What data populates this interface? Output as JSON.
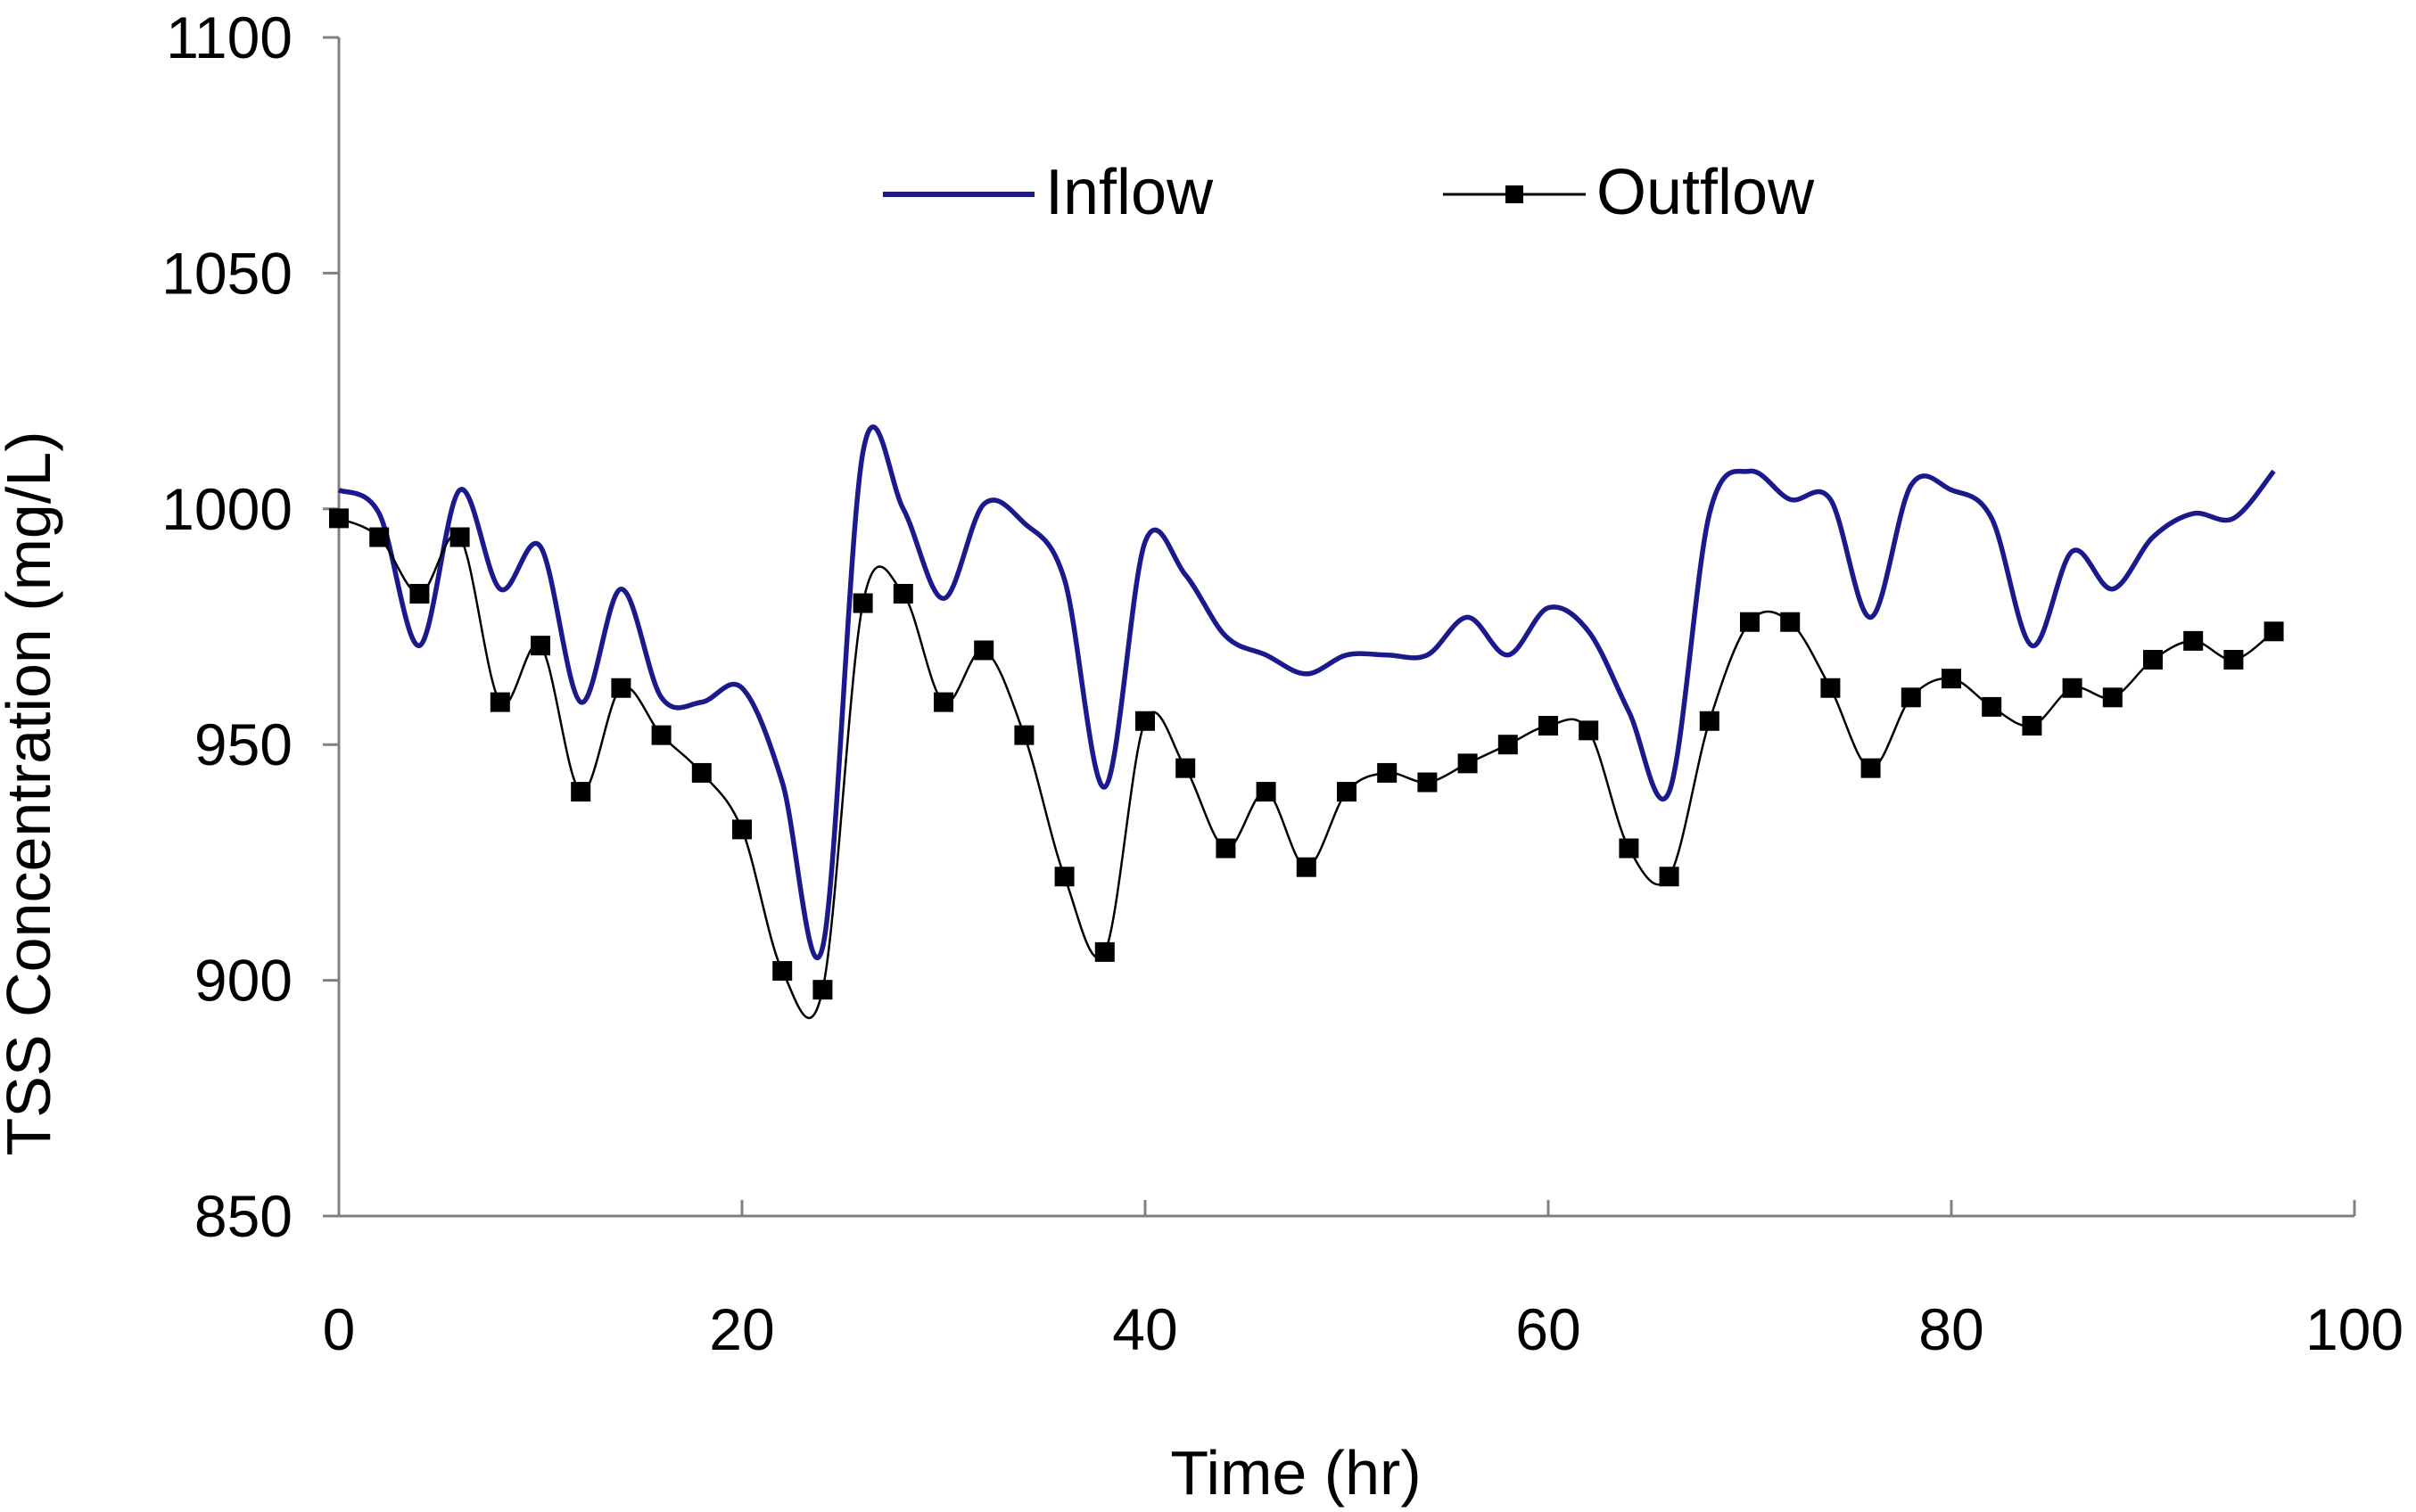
{
  "chart_data": {
    "type": "line",
    "title": "",
    "xlabel": "Time (hr)",
    "ylabel": "TSS Concentration (mg/L)",
    "xlim": [
      0,
      100
    ],
    "ylim": [
      850,
      1100
    ],
    "xticks": [
      0,
      20,
      40,
      60,
      80,
      100
    ],
    "yticks": [
      850,
      900,
      950,
      1000,
      1050,
      1100
    ],
    "xtick_labels": [
      "0",
      "20",
      "40",
      "60",
      "80",
      "100"
    ],
    "ytick_labels": [
      "850",
      "900",
      "950",
      "1000",
      "1050",
      "1100"
    ],
    "grid": false,
    "legend_position": "top-center",
    "series": [
      {
        "name": "Inflow",
        "color": "#1a1a8c",
        "marker": "none",
        "x": [
          0,
          2,
          4,
          6,
          8,
          10,
          12,
          14,
          16,
          18,
          20,
          22,
          24,
          26,
          28,
          30,
          32,
          34,
          36,
          38,
          40,
          42,
          44,
          46,
          48,
          50,
          52,
          54,
          56,
          58,
          60,
          62,
          64,
          66,
          68,
          70,
          72,
          74,
          76,
          78,
          80,
          82,
          84,
          86,
          88,
          90,
          92,
          94,
          96
        ],
        "values": [
          1004,
          999,
          971,
          1004,
          983,
          992,
          959,
          983,
          960,
          959,
          962,
          942,
          907,
          1012,
          1000,
          981,
          1001,
          997,
          985,
          941,
          993,
          986,
          973,
          969,
          965,
          969,
          969,
          969,
          977,
          969,
          979,
          974,
          957,
          940,
          999,
          1008,
          1002,
          1002,
          977,
          1005,
          1004,
          998,
          971,
          991,
          983,
          994,
          999,
          998,
          1008
        ]
      },
      {
        "name": "Outflow",
        "color": "#000000",
        "marker": "square",
        "x": [
          0,
          2,
          4,
          6,
          8,
          10,
          12,
          14,
          16,
          18,
          20,
          22,
          24,
          26,
          28,
          30,
          32,
          34,
          36,
          38,
          40,
          42,
          44,
          46,
          48,
          50,
          52,
          54,
          56,
          58,
          60,
          62,
          64,
          66,
          68,
          70,
          72,
          74,
          76,
          78,
          80,
          82,
          84,
          86,
          88,
          90,
          92,
          94,
          96
        ],
        "values": [
          998,
          994,
          982,
          994,
          959,
          971,
          940,
          962,
          952,
          944,
          932,
          902,
          898,
          980,
          982,
          959,
          970,
          952,
          922,
          906,
          955,
          945,
          928,
          940,
          924,
          940,
          944,
          942,
          946,
          950,
          954,
          953,
          928,
          922,
          955,
          976,
          976,
          962,
          945,
          960,
          964,
          958,
          954,
          962,
          960,
          968,
          972,
          968,
          974
        ]
      }
    ]
  }
}
